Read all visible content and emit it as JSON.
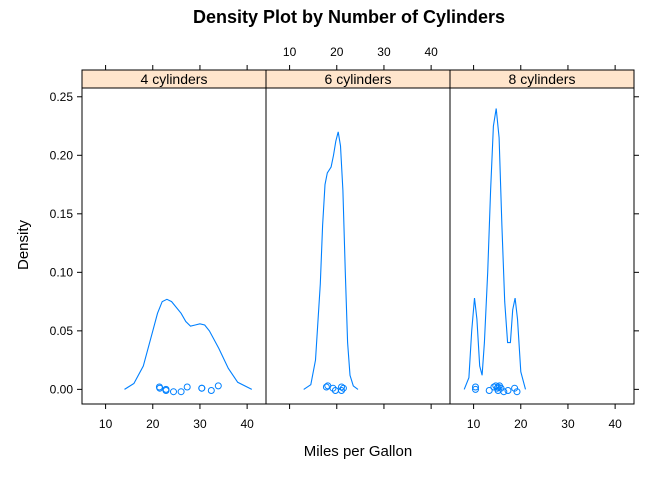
{
  "chart_data": {
    "type": "line",
    "title": "Density Plot by Number of Cylinders",
    "xlabel": "Miles per Gallon",
    "ylabel": "Density",
    "xlim": [
      5,
      44
    ],
    "ylim": [
      -0.0125,
      0.2575
    ],
    "x_ticks": [
      10,
      20,
      30,
      40
    ],
    "y_ticks": [
      0.0,
      0.05,
      0.1,
      0.15,
      0.2,
      0.25
    ],
    "y_tick_labels": [
      "0.00",
      "0.05",
      "0.10",
      "0.15",
      "0.20",
      "0.25"
    ],
    "line_color": "#0080ff",
    "strip_color": "#ffe5cc",
    "panels": [
      {
        "label": "4 cylinders",
        "density": [
          [
            14,
            0.0
          ],
          [
            16,
            0.005
          ],
          [
            18,
            0.02
          ],
          [
            20,
            0.05
          ],
          [
            21,
            0.065
          ],
          [
            22,
            0.075
          ],
          [
            23,
            0.077
          ],
          [
            24,
            0.075
          ],
          [
            26,
            0.065
          ],
          [
            27,
            0.058
          ],
          [
            28,
            0.054
          ],
          [
            29,
            0.055
          ],
          [
            30,
            0.056
          ],
          [
            31,
            0.055
          ],
          [
            32,
            0.05
          ],
          [
            34,
            0.035
          ],
          [
            36,
            0.018
          ],
          [
            38,
            0.006
          ],
          [
            41,
            0.0
          ]
        ],
        "rug": [
          21.4,
          22.8,
          22.8,
          24.4,
          26.0,
          27.3,
          30.4,
          30.4,
          32.4,
          33.9,
          21.5
        ],
        "rug_y": [
          0.002,
          0.0,
          -0.001,
          -0.002,
          -0.002,
          0.002,
          0.001,
          0.001,
          -0.001,
          0.003,
          0.001
        ]
      },
      {
        "label": "6 cylinders",
        "density": [
          [
            13,
            0.0
          ],
          [
            14.5,
            0.004
          ],
          [
            15.5,
            0.025
          ],
          [
            16.5,
            0.09
          ],
          [
            17,
            0.14
          ],
          [
            17.5,
            0.175
          ],
          [
            18,
            0.185
          ],
          [
            18.8,
            0.19
          ],
          [
            19.3,
            0.2
          ],
          [
            19.8,
            0.212
          ],
          [
            20.3,
            0.22
          ],
          [
            20.8,
            0.208
          ],
          [
            21.3,
            0.17
          ],
          [
            21.8,
            0.1
          ],
          [
            22.3,
            0.04
          ],
          [
            22.8,
            0.012
          ],
          [
            23.5,
            0.003
          ],
          [
            24.5,
            0.0
          ]
        ],
        "rug": [
          17.8,
          18.1,
          19.2,
          19.7,
          21.0,
          21.0,
          21.4
        ],
        "rug_y": [
          0.002,
          0.003,
          0.001,
          -0.001,
          0.002,
          -0.001,
          0.001
        ]
      },
      {
        "label": "8 cylinders",
        "density": [
          [
            8,
            0.0
          ],
          [
            9,
            0.01
          ],
          [
            9.6,
            0.05
          ],
          [
            10.2,
            0.078
          ],
          [
            10.7,
            0.06
          ],
          [
            11.3,
            0.02
          ],
          [
            11.8,
            0.012
          ],
          [
            12.3,
            0.04
          ],
          [
            13.0,
            0.1
          ],
          [
            13.6,
            0.17
          ],
          [
            14.2,
            0.225
          ],
          [
            14.8,
            0.24
          ],
          [
            15.4,
            0.215
          ],
          [
            16.0,
            0.14
          ],
          [
            16.6,
            0.075
          ],
          [
            17.2,
            0.04
          ],
          [
            17.8,
            0.04
          ],
          [
            18.3,
            0.068
          ],
          [
            18.8,
            0.078
          ],
          [
            19.3,
            0.06
          ],
          [
            20.0,
            0.015
          ],
          [
            21.0,
            0.0
          ]
        ],
        "rug": [
          10.4,
          10.4,
          13.3,
          14.3,
          14.7,
          15.0,
          15.2,
          15.2,
          15.5,
          15.8,
          16.4,
          17.3,
          18.7,
          19.2
        ],
        "rug_y": [
          0.0,
          0.002,
          -0.001,
          0.002,
          0.003,
          0.001,
          0.002,
          -0.001,
          0.003,
          0.001,
          -0.002,
          -0.001,
          0.001,
          -0.002
        ]
      }
    ]
  }
}
